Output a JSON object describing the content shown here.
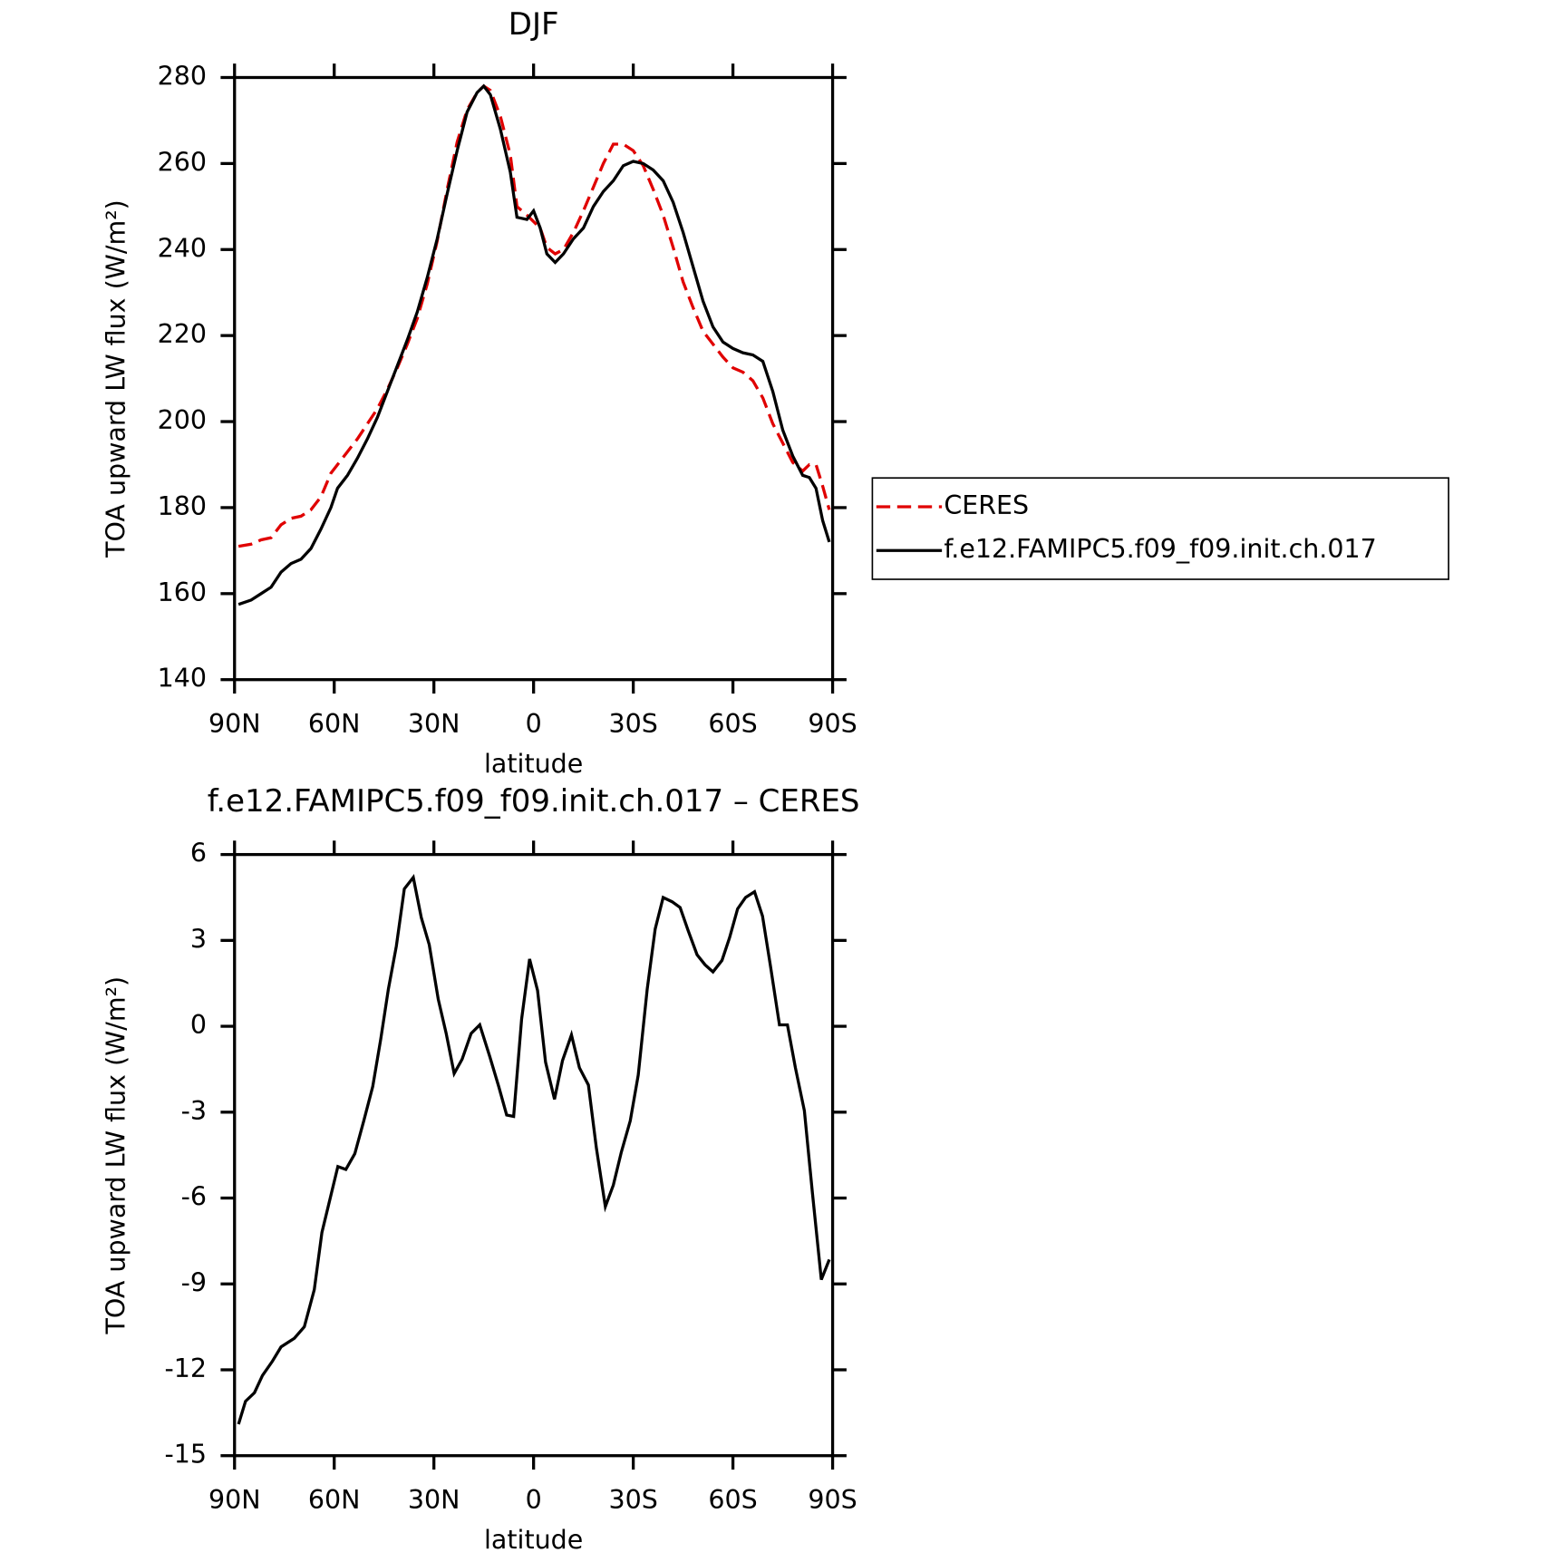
{
  "chart_data": [
    {
      "type": "line",
      "title": "DJF",
      "xlabel": "latitude",
      "ylabel": "TOA upward LW flux (W/m²)",
      "xlim": [
        90,
        -90
      ],
      "xticks": [
        {
          "value": 90,
          "label": "90N"
        },
        {
          "value": 60,
          "label": "60N"
        },
        {
          "value": 30,
          "label": "30N"
        },
        0,
        {
          "value": -30,
          "label": "30S"
        },
        {
          "value": -60,
          "label": "60S"
        },
        {
          "value": -90,
          "label": "90S"
        }
      ],
      "ylim": [
        140,
        280
      ],
      "yticks": [
        140,
        160,
        180,
        200,
        220,
        240,
        260,
        280
      ],
      "legend": "right",
      "x": [
        88.8,
        85,
        82,
        79,
        76,
        73,
        70,
        67,
        64,
        61,
        59,
        56,
        53,
        50,
        47,
        44,
        41,
        38,
        35,
        32,
        29,
        26,
        23,
        20,
        17,
        15,
        13,
        10,
        7,
        5,
        2,
        0,
        -2,
        -4,
        -6.5,
        -9,
        -12,
        -15,
        -18,
        -21,
        -24,
        -27,
        -30,
        -33,
        -36,
        -39,
        -42,
        -45,
        -48,
        -51,
        -54,
        -57,
        -60,
        -63,
        -66,
        -69,
        -72,
        -75,
        -78,
        -81,
        -83,
        -85,
        -87,
        -89
      ],
      "series": [
        {
          "name": "CERES",
          "color": "#e00000",
          "linestyle": "dashed",
          "values": [
            171,
            171.5,
            172.5,
            173,
            176,
            177.5,
            178,
            179.5,
            182.5,
            188,
            190,
            193,
            196,
            199.5,
            203,
            207.5,
            212.5,
            218,
            224,
            232,
            242,
            254,
            265,
            272.5,
            276.5,
            278,
            277,
            271,
            262,
            250,
            248,
            246.5,
            245,
            240.5,
            239,
            240,
            244,
            249,
            254.5,
            260,
            264.5,
            264.5,
            263,
            259.5,
            254,
            248,
            240.5,
            232.5,
            226.5,
            221,
            218,
            215,
            212.5,
            211.5,
            209.5,
            205.5,
            199.5,
            195,
            190.5,
            188.5,
            190,
            190,
            185,
            179.5
          ]
        },
        {
          "name": "f.e12.FAMIPC5.f09_f09.init.ch.017",
          "color": "#000000",
          "linestyle": "solid",
          "values": [
            157.5,
            158.5,
            160,
            161.5,
            165,
            167,
            168,
            170.5,
            175,
            180,
            184.5,
            187.5,
            191.5,
            196,
            201,
            207,
            213,
            219,
            225.5,
            233.5,
            242.5,
            253,
            263,
            272,
            276.5,
            278,
            276,
            268,
            258,
            247.5,
            247,
            249,
            245,
            239,
            237,
            239,
            242.5,
            245,
            250,
            253.5,
            256,
            259.5,
            260.5,
            260,
            258.5,
            256,
            251,
            244,
            236,
            228,
            222,
            218.5,
            217,
            216,
            215.5,
            214,
            207,
            198,
            192,
            187.5,
            187,
            184.5,
            177,
            172
          ]
        }
      ]
    },
    {
      "type": "line",
      "title": "f.e12.FAMIPC5.f09_f09.init.ch.017 – CERES",
      "xlabel": "latitude",
      "ylabel": "TOA upward LW flux (W/m²)",
      "xlim": [
        90,
        -90
      ],
      "xticks": [
        {
          "value": 90,
          "label": "90N"
        },
        {
          "value": 60,
          "label": "60N"
        },
        {
          "value": 30,
          "label": "30N"
        },
        0,
        {
          "value": -30,
          "label": "30S"
        },
        {
          "value": -60,
          "label": "60S"
        },
        {
          "value": -90,
          "label": "90S"
        }
      ],
      "ylim": [
        -15,
        6
      ],
      "yticks": [
        -15,
        -12,
        -9,
        -6,
        -3,
        0,
        3,
        6
      ],
      "x": [
        88.8,
        86.7,
        84,
        81.6,
        78.6,
        76,
        72,
        69,
        66,
        63.7,
        58.9,
        56.5,
        53.8,
        51.1,
        48.4,
        46,
        43.7,
        41.3,
        38.9,
        36.2,
        33.8,
        31.4,
        28.7,
        26.3,
        23.9,
        21.5,
        18.8,
        16.2,
        13.2,
        10.5,
        8.1,
        6,
        3.6,
        1.2,
        -1.2,
        -3.6,
        -6.3,
        -8.7,
        -11.4,
        -13.8,
        -16.5,
        -18.9,
        -21.6,
        -24,
        -26.4,
        -29.1,
        -31.5,
        -34.2,
        -36.6,
        -39,
        -41.7,
        -44.1,
        -46.5,
        -49.2,
        -51.6,
        -54,
        -56.7,
        -59,
        -61.4,
        -63.8,
        -66.5,
        -68.9,
        -71.3,
        -74,
        -76.4,
        -78.8,
        -81.5,
        -83.9,
        -86.6,
        -89
      ],
      "series": [
        {
          "name": "f.e12.FAMIPC5.f09_f09.init.ch.017",
          "color": "#000000",
          "linestyle": "solid",
          "values": [
            -13.9,
            -13.1,
            -12.8,
            -12.2,
            -11.7,
            -11.2,
            -10.9,
            -10.5,
            -9.2,
            -7.2,
            -4.9,
            -5.0,
            -4.45,
            -3.3,
            -2.1,
            -0.45,
            1.3,
            2.8,
            4.8,
            5.2,
            3.8,
            2.85,
            0.95,
            -0.25,
            -1.65,
            -1.15,
            -0.25,
            0.05,
            -1.05,
            -2.1,
            -3.1,
            -3.15,
            0.25,
            2.35,
            1.25,
            -1.25,
            -2.55,
            -1.2,
            -0.3,
            -1.45,
            -2.05,
            -4.25,
            -6.3,
            -5.55,
            -4.4,
            -3.3,
            -1.7,
            1.3,
            3.4,
            4.5,
            4.35,
            4.15,
            3.35,
            2.5,
            2.15,
            1.9,
            2.3,
            3.1,
            4.1,
            4.5,
            4.7,
            3.85,
            2.1,
            0.05,
            0.05,
            -1.45,
            -2.95,
            -5.8,
            -8.85,
            -8.15
          ]
        }
      ]
    }
  ]
}
